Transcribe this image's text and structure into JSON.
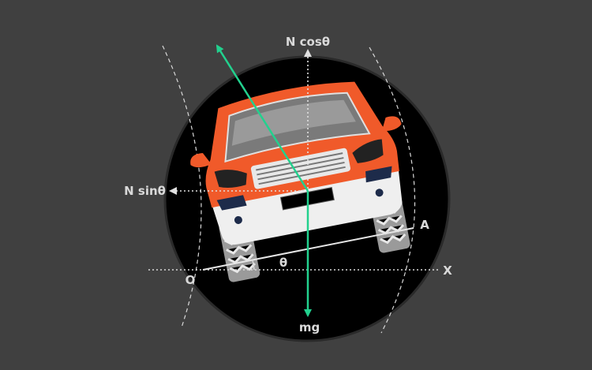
{
  "diagram": {
    "labels": {
      "n_cos": "N cosθ",
      "n_sin": "N sinθ",
      "mg": "mg",
      "theta": "θ",
      "origin": "O",
      "point_a": "A",
      "axis_x": "X"
    },
    "colors": {
      "background": "#404040",
      "disc": "#000000",
      "car_body": "#f05a2a",
      "force_arrow": "#22d18e",
      "guide_lines": "#d9d9d9"
    }
  }
}
